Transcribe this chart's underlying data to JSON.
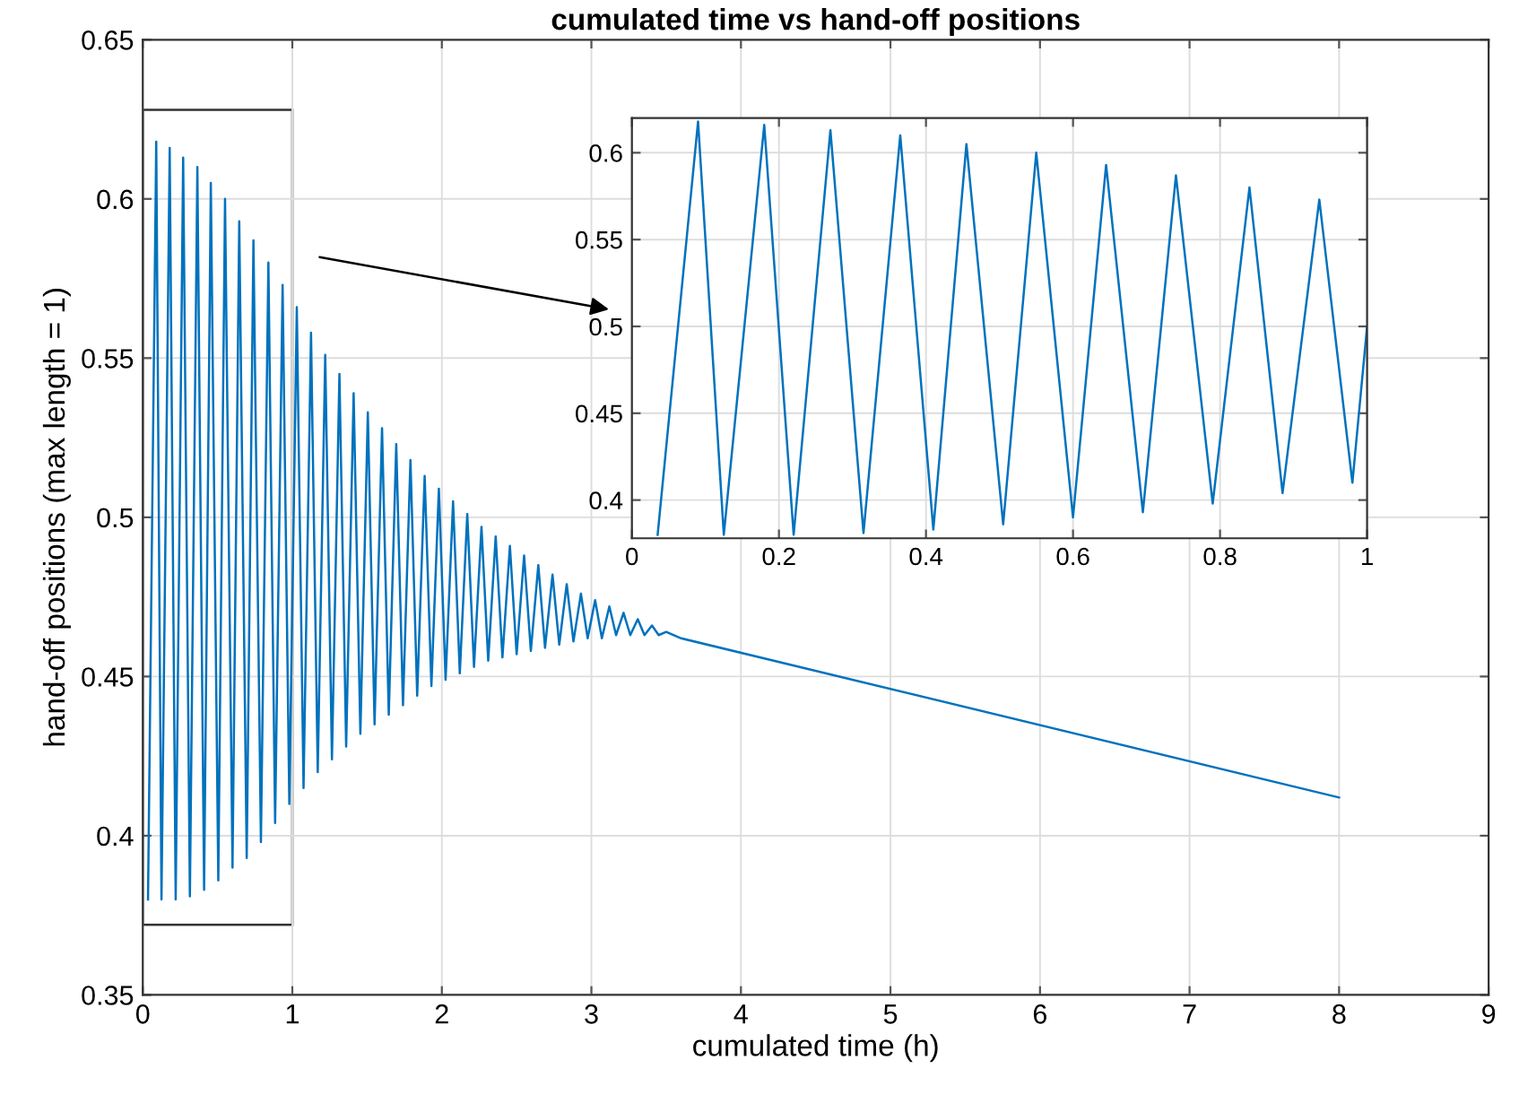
{
  "chart_data": [
    {
      "type": "line",
      "title": "cumulated time vs hand-off positions",
      "xlabel": "cumulated time (h)",
      "ylabel": "hand-off positions (max length = 1)",
      "xlim": [
        0,
        9
      ],
      "xticks": [
        0,
        1,
        2,
        3,
        4,
        5,
        6,
        7,
        8,
        9
      ],
      "ylim": [
        0.35,
        0.65
      ],
      "yticks": [
        0.35,
        0.4,
        0.45,
        0.5,
        0.55,
        0.6,
        0.65
      ],
      "grid": true,
      "series": [
        {
          "color": "#0072bd",
          "x": [
            0.035,
            0.09,
            0.125,
            0.18,
            0.22,
            0.27,
            0.315,
            0.365,
            0.41,
            0.455,
            0.505,
            0.55,
            0.6,
            0.645,
            0.695,
            0.74,
            0.79,
            0.84,
            0.885,
            0.935,
            0.98,
            1.03,
            1.075,
            1.125,
            1.17,
            1.22,
            1.265,
            1.315,
            1.36,
            1.41,
            1.455,
            1.505,
            1.55,
            1.6,
            1.645,
            1.695,
            1.74,
            1.79,
            1.835,
            1.885,
            1.93,
            1.98,
            2.025,
            2.075,
            2.12,
            2.17,
            2.215,
            2.265,
            2.31,
            2.36,
            2.405,
            2.455,
            2.5,
            2.55,
            2.595,
            2.645,
            2.69,
            2.74,
            2.785,
            2.835,
            2.88,
            2.93,
            2.975,
            3.025,
            3.07,
            3.12,
            3.165,
            3.215,
            3.26,
            3.31,
            3.355,
            3.405,
            3.45,
            3.5,
            3.6,
            8
          ],
          "values": [
            0.38,
            0.618,
            0.38,
            0.616,
            0.38,
            0.613,
            0.381,
            0.61,
            0.383,
            0.605,
            0.386,
            0.6,
            0.39,
            0.593,
            0.393,
            0.587,
            0.398,
            0.58,
            0.404,
            0.573,
            0.41,
            0.566,
            0.415,
            0.558,
            0.42,
            0.551,
            0.424,
            0.545,
            0.428,
            0.539,
            0.432,
            0.533,
            0.435,
            0.528,
            0.438,
            0.523,
            0.441,
            0.518,
            0.444,
            0.513,
            0.447,
            0.509,
            0.449,
            0.505,
            0.451,
            0.501,
            0.453,
            0.497,
            0.455,
            0.494,
            0.456,
            0.491,
            0.457,
            0.488,
            0.458,
            0.485,
            0.459,
            0.482,
            0.46,
            0.479,
            0.461,
            0.476,
            0.462,
            0.474,
            0.462,
            0.472,
            0.463,
            0.47,
            0.463,
            0.468,
            0.463,
            0.466,
            0.463,
            0.464,
            0.462,
            0.412
          ]
        }
      ]
    },
    {
      "type": "line",
      "xlim": [
        0,
        1
      ],
      "xticks": [
        0,
        0.2,
        0.4,
        0.6,
        0.8,
        1
      ],
      "ylim": [
        0.378,
        0.62
      ],
      "yticks": [
        0.4,
        0.45,
        0.5,
        0.55,
        0.6
      ],
      "grid": true,
      "series": [
        {
          "color": "#0072bd",
          "x": [
            0.035,
            0.09,
            0.125,
            0.18,
            0.22,
            0.27,
            0.315,
            0.365,
            0.41,
            0.455,
            0.505,
            0.55,
            0.6,
            0.645,
            0.695,
            0.74,
            0.79,
            0.84,
            0.885,
            0.935,
            0.98,
            1.0
          ],
          "values": [
            0.38,
            0.618,
            0.38,
            0.616,
            0.38,
            0.613,
            0.381,
            0.61,
            0.383,
            0.605,
            0.386,
            0.6,
            0.39,
            0.593,
            0.393,
            0.587,
            0.398,
            0.58,
            0.404,
            0.573,
            0.41,
            0.5
          ]
        }
      ]
    }
  ]
}
